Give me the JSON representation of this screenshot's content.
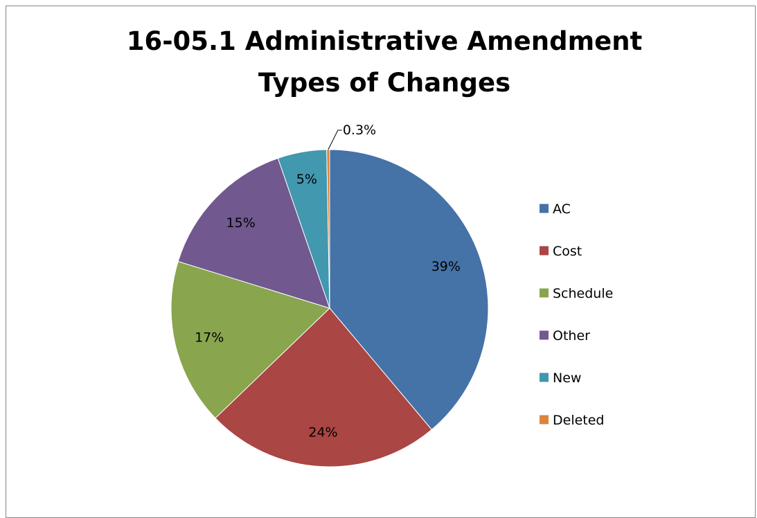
{
  "chart_data": {
    "type": "pie",
    "title": "16-05.1 Administrative Amendment Types of Changes",
    "title_lines": [
      "16-05.1 Administrative Amendment",
      "Types of Changes"
    ],
    "categories": [
      "AC",
      "Cost",
      "Schedule",
      "Other",
      "New",
      "Deleted"
    ],
    "values": [
      39,
      24,
      17,
      15,
      5,
      0.3
    ],
    "data_labels": [
      "39%",
      "24%",
      "17%",
      "15%",
      "5%",
      "0.3%"
    ],
    "colors": [
      "#4572A7",
      "#AA4643",
      "#89A54E",
      "#71588F",
      "#4198AF",
      "#DB843D"
    ],
    "legend_position": "right",
    "start_angle_deg": 0,
    "direction": "clockwise"
  }
}
